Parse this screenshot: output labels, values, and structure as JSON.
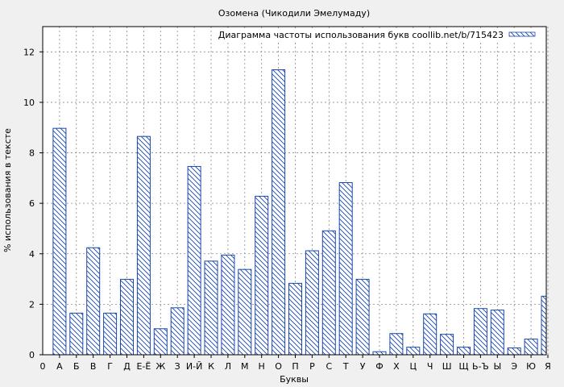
{
  "chart_data": {
    "type": "bar",
    "title": "Озомена (Чикодили Эмелумаду)",
    "xlabel": "Буквы",
    "ylabel": "% использования в тексте",
    "legend_label": "Диаграмма частоты использования букв coollib.net/b/715423",
    "legend_position": "top-right",
    "grid": true,
    "ylim": [
      0,
      13
    ],
    "yticks": [
      0,
      2,
      4,
      6,
      8,
      10,
      12
    ],
    "x_origin_label": "0",
    "categories": [
      "А",
      "Б",
      "В",
      "Г",
      "Д",
      "Е-Ё",
      "Ж",
      "З",
      "И-Й",
      "К",
      "Л",
      "М",
      "Н",
      "О",
      "П",
      "Р",
      "С",
      "Т",
      "У",
      "Ф",
      "Х",
      "Ц",
      "Ч",
      "Ш",
      "Щ",
      "Ь-Ъ",
      "Ы",
      "Э",
      "Ю",
      "Я"
    ],
    "values": [
      8.97,
      1.65,
      4.24,
      1.65,
      2.99,
      8.65,
      1.03,
      1.86,
      7.46,
      3.71,
      3.95,
      3.38,
      6.28,
      11.29,
      2.83,
      4.12,
      4.91,
      6.82,
      2.99,
      0.12,
      0.84,
      0.3,
      1.62,
      0.81,
      0.3,
      1.83,
      1.77,
      0.27,
      0.62,
      2.32
    ],
    "bar_color": "#1a47a8",
    "background_color": "#ffffff"
  }
}
